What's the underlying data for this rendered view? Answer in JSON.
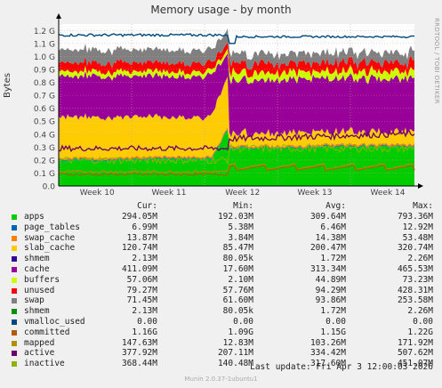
{
  "chart_data": {
    "type": "area",
    "title": "Memory usage - by month",
    "ylabel": "Bytes",
    "watermark": "RRDTOOL / TOBI OETIKER",
    "yticks": [
      "0.0",
      "0.1 G",
      "0.2 G",
      "0.3 G",
      "0.4 G",
      "0.5 G",
      "0.6 G",
      "0.7 G",
      "0.8 G",
      "0.9 G",
      "1.0 G",
      "1.1 G",
      "1.2 G"
    ],
    "ylim": [
      0,
      1.25
    ],
    "xticks": [
      "Week 10",
      "Week 11",
      "Week 12",
      "Week 13",
      "Week 14"
    ],
    "headers": [
      "Cur:",
      "Min:",
      "Avg:",
      "Max:"
    ],
    "series": [
      {
        "name": "apps",
        "color": "#00cc00",
        "cur": "294.05M",
        "min": "192.03M",
        "avg": "309.64M",
        "max": "793.36M"
      },
      {
        "name": "page_tables",
        "color": "#0066b3",
        "cur": "6.99M",
        "min": "5.38M",
        "avg": "6.46M",
        "max": "12.92M"
      },
      {
        "name": "swap_cache",
        "color": "#ff8000",
        "cur": "13.87M",
        "min": "3.84M",
        "avg": "14.38M",
        "max": "53.48M"
      },
      {
        "name": "slab_cache",
        "color": "#ffcc00",
        "cur": "120.74M",
        "min": "85.47M",
        "avg": "200.47M",
        "max": "320.74M"
      },
      {
        "name": "shmem",
        "color": "#330099",
        "cur": "2.13M",
        "min": "80.05k",
        "avg": "1.72M",
        "max": "2.26M"
      },
      {
        "name": "cache",
        "color": "#990099",
        "cur": "411.09M",
        "min": "17.60M",
        "avg": "313.34M",
        "max": "465.53M"
      },
      {
        "name": "buffers",
        "color": "#ccff00",
        "cur": "57.06M",
        "min": "2.10M",
        "avg": "44.89M",
        "max": "73.23M"
      },
      {
        "name": "unused",
        "color": "#ff0000",
        "cur": "79.27M",
        "min": "57.76M",
        "avg": "94.29M",
        "max": "428.31M"
      },
      {
        "name": "swap",
        "color": "#808080",
        "cur": "71.45M",
        "min": "61.60M",
        "avg": "93.86M",
        "max": "253.58M"
      },
      {
        "name": "shmem",
        "color": "#008f00",
        "cur": "2.13M",
        "min": "80.05k",
        "avg": "1.72M",
        "max": "2.26M"
      },
      {
        "name": "vmalloc_used",
        "color": "#00487d",
        "cur": "0.00",
        "min": "0.00",
        "avg": "0.00",
        "max": "0.00"
      },
      {
        "name": "committed",
        "color": "#b35a00",
        "cur": "1.16G",
        "min": "1.09G",
        "avg": "1.15G",
        "max": "1.22G"
      },
      {
        "name": "mapped",
        "color": "#b38f00",
        "cur": "147.63M",
        "min": "12.83M",
        "avg": "103.26M",
        "max": "171.92M"
      },
      {
        "name": "active",
        "color": "#6b006b",
        "cur": "377.92M",
        "min": "207.11M",
        "avg": "334.42M",
        "max": "507.62M"
      },
      {
        "name": "inactive",
        "color": "#8fb300",
        "cur": "368.44M",
        "min": "140.48M",
        "avg": "317.60M",
        "max": "451.07M"
      }
    ],
    "last_update": "Last update: Fri Apr  3 12:00:03 2026",
    "footer": "Munin 2.0.37-1ubuntu1"
  }
}
